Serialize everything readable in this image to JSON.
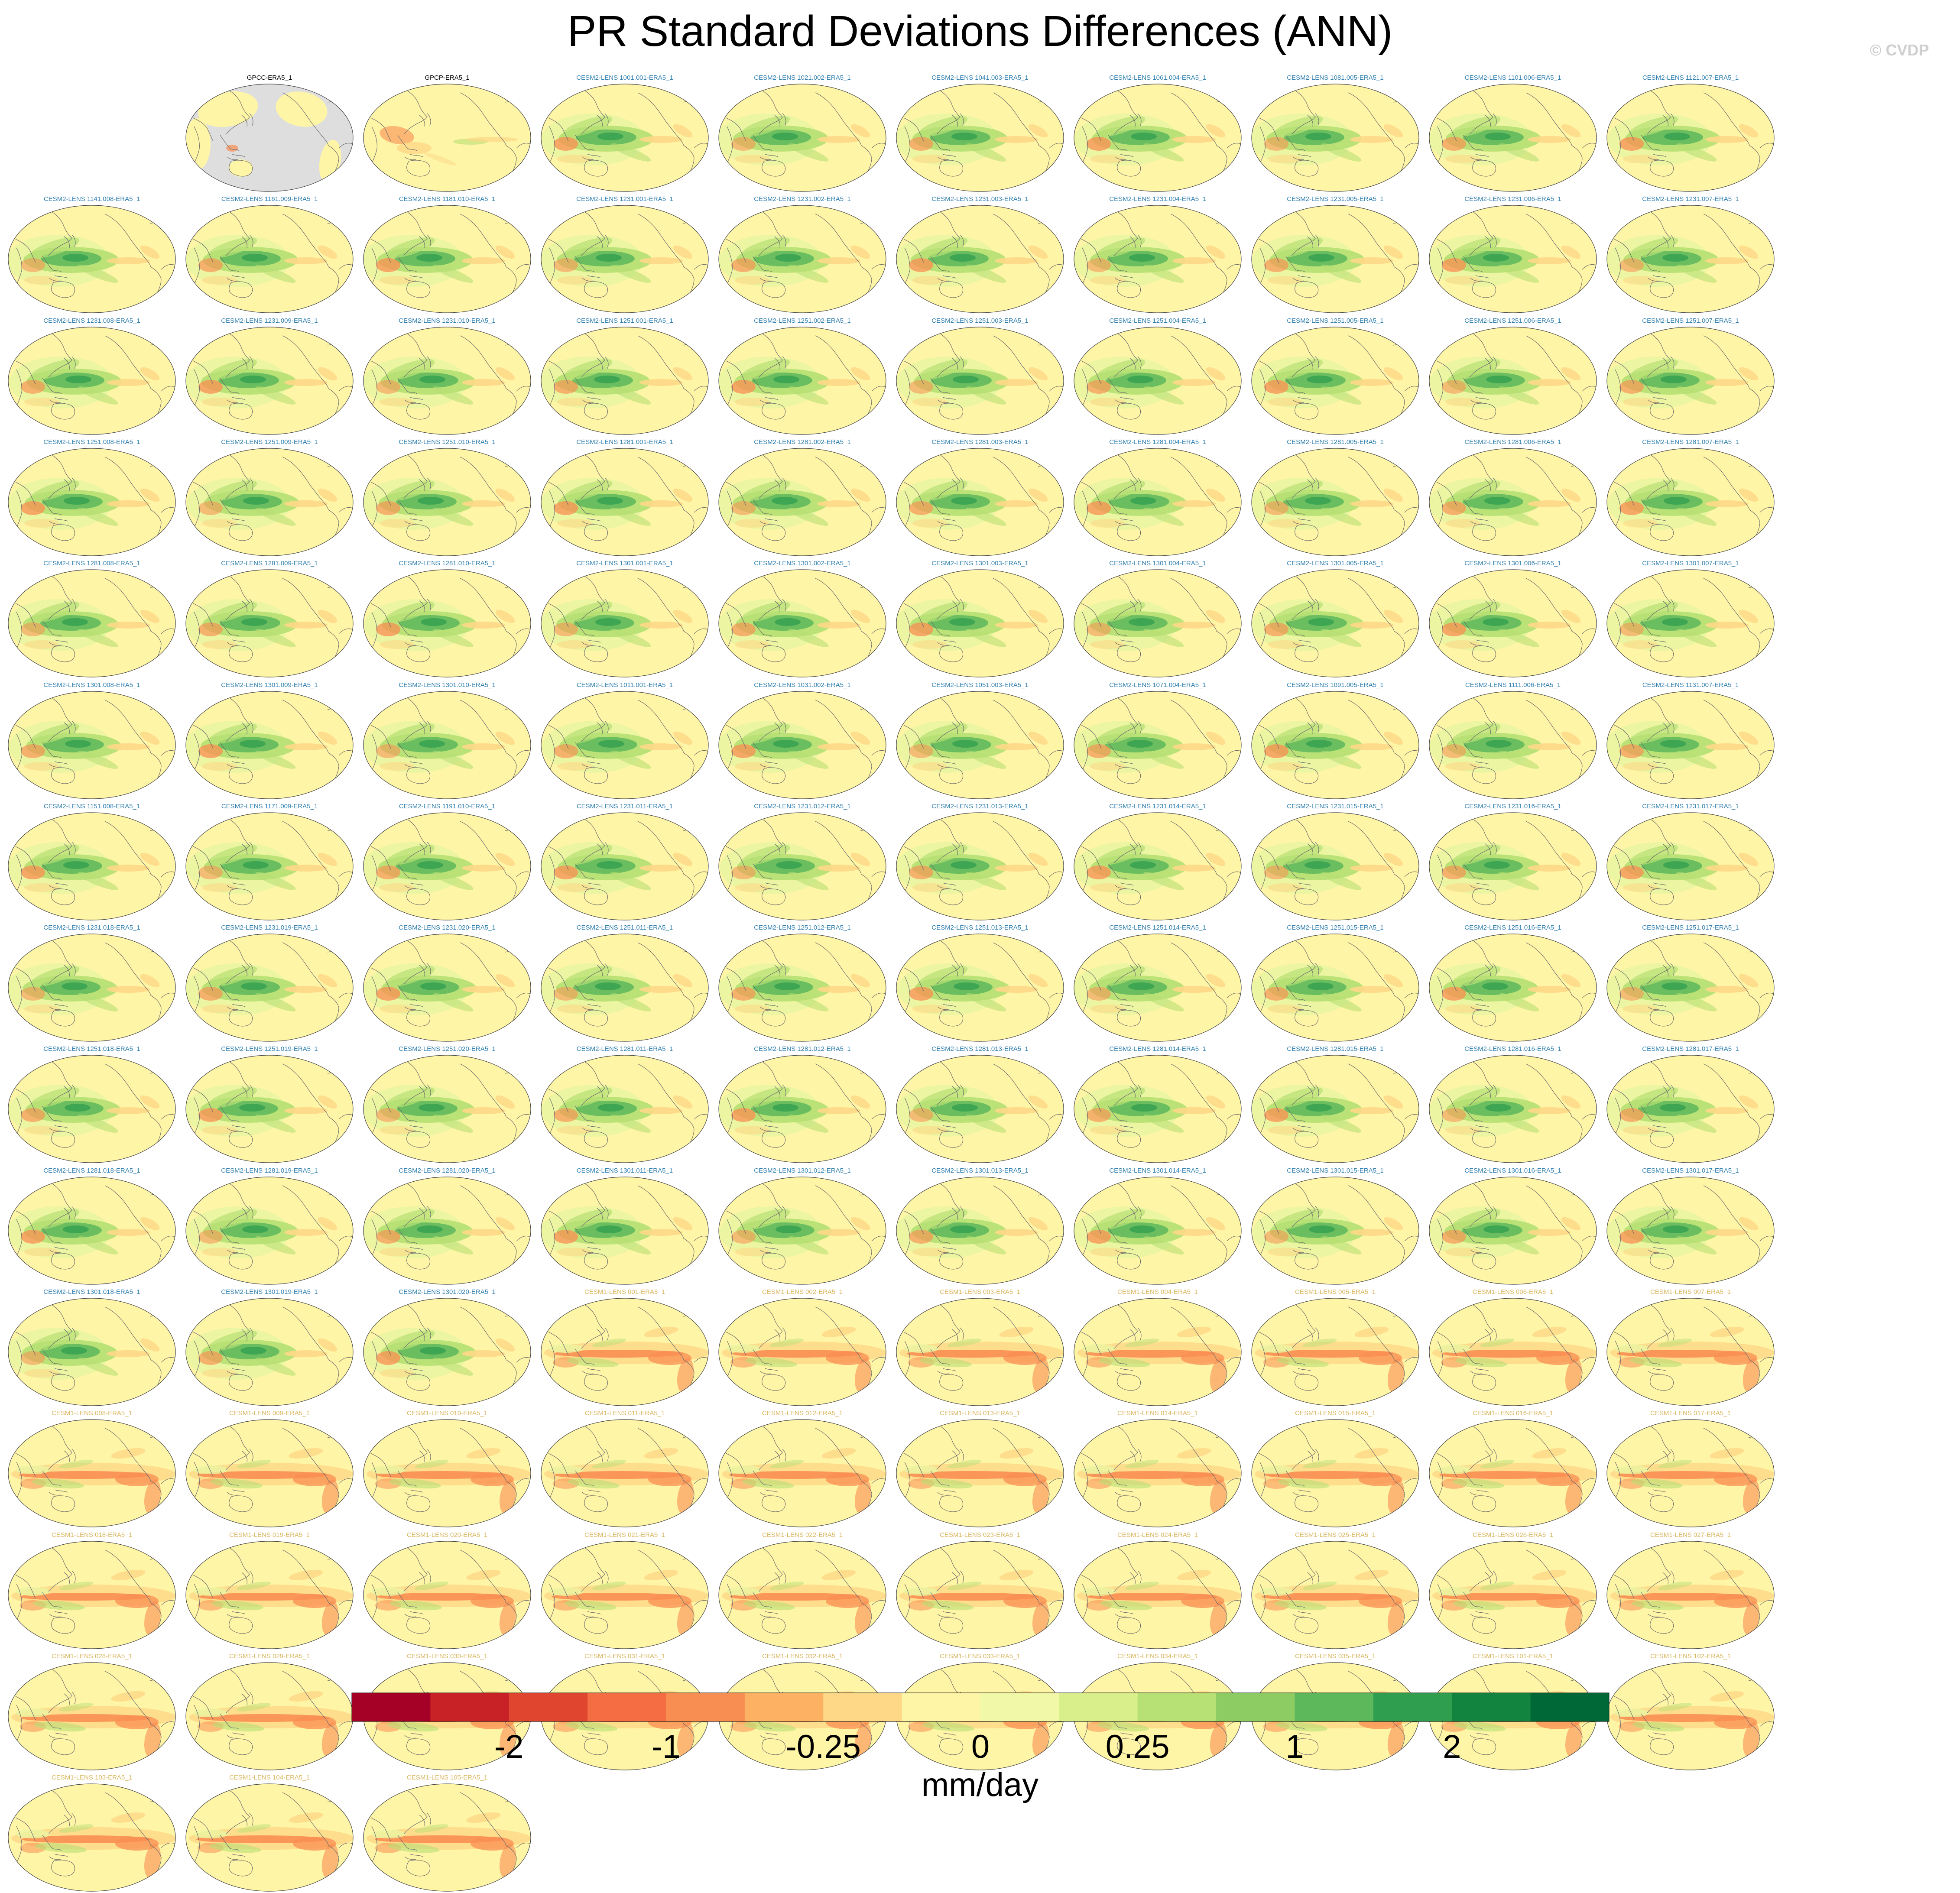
{
  "title": "PR Standard Deviations Differences (ANN)",
  "copyright": "© CVDP",
  "chart_data": {
    "type": "heatmap",
    "variable": "PR",
    "season": "ANN",
    "projection": "Robinson (Pacific-centered global map)",
    "grid_layout": {
      "rows": 13,
      "columns": 10
    },
    "panel_colors": {
      "CESM2-LENS": "#2f7fb0",
      "CESM1-LENS": "#d9b65c",
      "observations": "#000000"
    },
    "panels": [
      {
        "label": "GPCC-ERA5_1",
        "group": "observations",
        "pattern": "obs-masked"
      },
      {
        "label": "GPCP-ERA5_1",
        "group": "observations",
        "pattern": "obs"
      },
      {
        "label": "CESM2-LENS 1001.001-ERA5_1",
        "group": "CESM2-LENS"
      },
      {
        "label": "CESM2-LENS 1021.002-ERA5_1",
        "group": "CESM2-LENS"
      },
      {
        "label": "CESM2-LENS 1041.003-ERA5_1",
        "group": "CESM2-LENS"
      },
      {
        "label": "CESM2-LENS 1061.004-ERA5_1",
        "group": "CESM2-LENS"
      },
      {
        "label": "CESM2-LENS 1081.005-ERA5_1",
        "group": "CESM2-LENS"
      },
      {
        "label": "CESM2-LENS 1101.006-ERA5_1",
        "group": "CESM2-LENS"
      },
      {
        "label": "CESM2-LENS 1121.007-ERA5_1",
        "group": "CESM2-LENS"
      },
      {
        "label": "CESM2-LENS 1141.008-ERA5_1",
        "group": "CESM2-LENS"
      },
      {
        "label": "CESM2-LENS 1161.009-ERA5_1",
        "group": "CESM2-LENS"
      },
      {
        "label": "CESM2-LENS 1181.010-ERA5_1",
        "group": "CESM2-LENS"
      },
      {
        "label": "CESM2-LENS 1231.001-ERA5_1",
        "group": "CESM2-LENS"
      },
      {
        "label": "CESM2-LENS 1231.002-ERA5_1",
        "group": "CESM2-LENS"
      },
      {
        "label": "CESM2-LENS 1231.003-ERA5_1",
        "group": "CESM2-LENS"
      },
      {
        "label": "CESM2-LENS 1231.004-ERA5_1",
        "group": "CESM2-LENS"
      },
      {
        "label": "CESM2-LENS 1231.005-ERA5_1",
        "group": "CESM2-LENS"
      },
      {
        "label": "CESM2-LENS 1231.006-ERA5_1",
        "group": "CESM2-LENS"
      },
      {
        "label": "CESM2-LENS 1231.007-ERA5_1",
        "group": "CESM2-LENS"
      },
      {
        "label": "CESM2-LENS 1231.008-ERA5_1",
        "group": "CESM2-LENS"
      },
      {
        "label": "CESM2-LENS 1231.009-ERA5_1",
        "group": "CESM2-LENS"
      },
      {
        "label": "CESM2-LENS 1231.010-ERA5_1",
        "group": "CESM2-LENS"
      },
      {
        "label": "CESM2-LENS 1251.001-ERA5_1",
        "group": "CESM2-LENS"
      },
      {
        "label": "CESM2-LENS 1251.002-ERA5_1",
        "group": "CESM2-LENS"
      },
      {
        "label": "CESM2-LENS 1251.003-ERA5_1",
        "group": "CESM2-LENS"
      },
      {
        "label": "CESM2-LENS 1251.004-ERA5_1",
        "group": "CESM2-LENS"
      },
      {
        "label": "CESM2-LENS 1251.005-ERA5_1",
        "group": "CESM2-LENS"
      },
      {
        "label": "CESM2-LENS 1251.006-ERA5_1",
        "group": "CESM2-LENS"
      },
      {
        "label": "CESM2-LENS 1251.007-ERA5_1",
        "group": "CESM2-LENS"
      },
      {
        "label": "CESM2-LENS 1251.008-ERA5_1",
        "group": "CESM2-LENS"
      },
      {
        "label": "CESM2-LENS 1251.009-ERA5_1",
        "group": "CESM2-LENS"
      },
      {
        "label": "CESM2-LENS 1251.010-ERA5_1",
        "group": "CESM2-LENS"
      },
      {
        "label": "CESM2-LENS 1281.001-ERA5_1",
        "group": "CESM2-LENS"
      },
      {
        "label": "CESM2-LENS 1281.002-ERA5_1",
        "group": "CESM2-LENS"
      },
      {
        "label": "CESM2-LENS 1281.003-ERA5_1",
        "group": "CESM2-LENS"
      },
      {
        "label": "CESM2-LENS 1281.004-ERA5_1",
        "group": "CESM2-LENS"
      },
      {
        "label": "CESM2-LENS 1281.005-ERA5_1",
        "group": "CESM2-LENS"
      },
      {
        "label": "CESM2-LENS 1281.006-ERA5_1",
        "group": "CESM2-LENS"
      },
      {
        "label": "CESM2-LENS 1281.007-ERA5_1",
        "group": "CESM2-LENS"
      },
      {
        "label": "CESM2-LENS 1281.008-ERA5_1",
        "group": "CESM2-LENS"
      },
      {
        "label": "CESM2-LENS 1281.009-ERA5_1",
        "group": "CESM2-LENS"
      },
      {
        "label": "CESM2-LENS 1281.010-ERA5_1",
        "group": "CESM2-LENS"
      },
      {
        "label": "CESM2-LENS 1301.001-ERA5_1",
        "group": "CESM2-LENS"
      },
      {
        "label": "CESM2-LENS 1301.002-ERA5_1",
        "group": "CESM2-LENS"
      },
      {
        "label": "CESM2-LENS 1301.003-ERA5_1",
        "group": "CESM2-LENS"
      },
      {
        "label": "CESM2-LENS 1301.004-ERA5_1",
        "group": "CESM2-LENS"
      },
      {
        "label": "CESM2-LENS 1301.005-ERA5_1",
        "group": "CESM2-LENS"
      },
      {
        "label": "CESM2-LENS 1301.006-ERA5_1",
        "group": "CESM2-LENS"
      },
      {
        "label": "CESM2-LENS 1301.007-ERA5_1",
        "group": "CESM2-LENS"
      },
      {
        "label": "CESM2-LENS 1301.008-ERA5_1",
        "group": "CESM2-LENS"
      },
      {
        "label": "CESM2-LENS 1301.009-ERA5_1",
        "group": "CESM2-LENS"
      },
      {
        "label": "CESM2-LENS 1301.010-ERA5_1",
        "group": "CESM2-LENS"
      },
      {
        "label": "CESM2-LENS 1011.001-ERA5_1",
        "group": "CESM2-LENS"
      },
      {
        "label": "CESM2-LENS 1031.002-ERA5_1",
        "group": "CESM2-LENS"
      },
      {
        "label": "CESM2-LENS 1051.003-ERA5_1",
        "group": "CESM2-LENS"
      },
      {
        "label": "CESM2-LENS 1071.004-ERA5_1",
        "group": "CESM2-LENS"
      },
      {
        "label": "CESM2-LENS 1091.005-ERA5_1",
        "group": "CESM2-LENS"
      },
      {
        "label": "CESM2-LENS 1111.006-ERA5_1",
        "group": "CESM2-LENS"
      },
      {
        "label": "CESM2-LENS 1131.007-ERA5_1",
        "group": "CESM2-LENS"
      },
      {
        "label": "CESM2-LENS 1151.008-ERA5_1",
        "group": "CESM2-LENS"
      },
      {
        "label": "CESM2-LENS 1171.009-ERA5_1",
        "group": "CESM2-LENS"
      },
      {
        "label": "CESM2-LENS 1191.010-ERA5_1",
        "group": "CESM2-LENS"
      },
      {
        "label": "CESM2-LENS 1231.011-ERA5_1",
        "group": "CESM2-LENS"
      },
      {
        "label": "CESM2-LENS 1231.012-ERA5_1",
        "group": "CESM2-LENS"
      },
      {
        "label": "CESM2-LENS 1231.013-ERA5_1",
        "group": "CESM2-LENS"
      },
      {
        "label": "CESM2-LENS 1231.014-ERA5_1",
        "group": "CESM2-LENS"
      },
      {
        "label": "CESM2-LENS 1231.015-ERA5_1",
        "group": "CESM2-LENS"
      },
      {
        "label": "CESM2-LENS 1231.016-ERA5_1",
        "group": "CESM2-LENS"
      },
      {
        "label": "CESM2-LENS 1231.017-ERA5_1",
        "group": "CESM2-LENS"
      },
      {
        "label": "CESM2-LENS 1231.018-ERA5_1",
        "group": "CESM2-LENS"
      },
      {
        "label": "CESM2-LENS 1231.019-ERA5_1",
        "group": "CESM2-LENS"
      },
      {
        "label": "CESM2-LENS 1231.020-ERA5_1",
        "group": "CESM2-LENS"
      },
      {
        "label": "CESM2-LENS 1251.011-ERA5_1",
        "group": "CESM2-LENS"
      },
      {
        "label": "CESM2-LENS 1251.012-ERA5_1",
        "group": "CESM2-LENS"
      },
      {
        "label": "CESM2-LENS 1251.013-ERA5_1",
        "group": "CESM2-LENS"
      },
      {
        "label": "CESM2-LENS 1251.014-ERA5_1",
        "group": "CESM2-LENS"
      },
      {
        "label": "CESM2-LENS 1251.015-ERA5_1",
        "group": "CESM2-LENS"
      },
      {
        "label": "CESM2-LENS 1251.016-ERA5_1",
        "group": "CESM2-LENS"
      },
      {
        "label": "CESM2-LENS 1251.017-ERA5_1",
        "group": "CESM2-LENS"
      },
      {
        "label": "CESM2-LENS 1251.018-ERA5_1",
        "group": "CESM2-LENS"
      },
      {
        "label": "CESM2-LENS 1251.019-ERA5_1",
        "group": "CESM2-LENS"
      },
      {
        "label": "CESM2-LENS 1251.020-ERA5_1",
        "group": "CESM2-LENS"
      },
      {
        "label": "CESM2-LENS 1281.011-ERA5_1",
        "group": "CESM2-LENS"
      },
      {
        "label": "CESM2-LENS 1281.012-ERA5_1",
        "group": "CESM2-LENS"
      },
      {
        "label": "CESM2-LENS 1281.013-ERA5_1",
        "group": "CESM2-LENS"
      },
      {
        "label": "CESM2-LENS 1281.014-ERA5_1",
        "group": "CESM2-LENS"
      },
      {
        "label": "CESM2-LENS 1281.015-ERA5_1",
        "group": "CESM2-LENS"
      },
      {
        "label": "CESM2-LENS 1281.016-ERA5_1",
        "group": "CESM2-LENS"
      },
      {
        "label": "CESM2-LENS 1281.017-ERA5_1",
        "group": "CESM2-LENS"
      },
      {
        "label": "CESM2-LENS 1281.018-ERA5_1",
        "group": "CESM2-LENS"
      },
      {
        "label": "CESM2-LENS 1281.019-ERA5_1",
        "group": "CESM2-LENS"
      },
      {
        "label": "CESM2-LENS 1281.020-ERA5_1",
        "group": "CESM2-LENS"
      },
      {
        "label": "CESM2-LENS 1301.011-ERA5_1",
        "group": "CESM2-LENS"
      },
      {
        "label": "CESM2-LENS 1301.012-ERA5_1",
        "group": "CESM2-LENS"
      },
      {
        "label": "CESM2-LENS 1301.013-ERA5_1",
        "group": "CESM2-LENS"
      },
      {
        "label": "CESM2-LENS 1301.014-ERA5_1",
        "group": "CESM2-LENS"
      },
      {
        "label": "CESM2-LENS 1301.015-ERA5_1",
        "group": "CESM2-LENS"
      },
      {
        "label": "CESM2-LENS 1301.016-ERA5_1",
        "group": "CESM2-LENS"
      },
      {
        "label": "CESM2-LENS 1301.017-ERA5_1",
        "group": "CESM2-LENS"
      },
      {
        "label": "CESM2-LENS 1301.018-ERA5_1",
        "group": "CESM2-LENS"
      },
      {
        "label": "CESM2-LENS 1301.019-ERA5_1",
        "group": "CESM2-LENS"
      },
      {
        "label": "CESM2-LENS 1301.020-ERA5_1",
        "group": "CESM2-LENS"
      },
      {
        "label": "CESM1-LENS 001-ERA5_1",
        "group": "CESM1-LENS"
      },
      {
        "label": "CESM1-LENS 002-ERA5_1",
        "group": "CESM1-LENS"
      },
      {
        "label": "CESM1-LENS 003-ERA5_1",
        "group": "CESM1-LENS"
      },
      {
        "label": "CESM1-LENS 004-ERA5_1",
        "group": "CESM1-LENS"
      },
      {
        "label": "CESM1-LENS 005-ERA5_1",
        "group": "CESM1-LENS"
      },
      {
        "label": "CESM1-LENS 006-ERA5_1",
        "group": "CESM1-LENS"
      },
      {
        "label": "CESM1-LENS 007-ERA5_1",
        "group": "CESM1-LENS"
      },
      {
        "label": "CESM1-LENS 008-ERA5_1",
        "group": "CESM1-LENS"
      },
      {
        "label": "CESM1-LENS 009-ERA5_1",
        "group": "CESM1-LENS"
      },
      {
        "label": "CESM1-LENS 010-ERA5_1",
        "group": "CESM1-LENS"
      },
      {
        "label": "CESM1-LENS 011-ERA5_1",
        "group": "CESM1-LENS"
      },
      {
        "label": "CESM1-LENS 012-ERA5_1",
        "group": "CESM1-LENS"
      },
      {
        "label": "CESM1-LENS 013-ERA5_1",
        "group": "CESM1-LENS"
      },
      {
        "label": "CESM1-LENS 014-ERA5_1",
        "group": "CESM1-LENS"
      },
      {
        "label": "CESM1-LENS 015-ERA5_1",
        "group": "CESM1-LENS"
      },
      {
        "label": "CESM1-LENS 016-ERA5_1",
        "group": "CESM1-LENS"
      },
      {
        "label": "CESM1-LENS 017-ERA5_1",
        "group": "CESM1-LENS"
      },
      {
        "label": "CESM1-LENS 018-ERA5_1",
        "group": "CESM1-LENS"
      },
      {
        "label": "CESM1-LENS 019-ERA5_1",
        "group": "CESM1-LENS"
      },
      {
        "label": "CESM1-LENS 020-ERA5_1",
        "group": "CESM1-LENS"
      },
      {
        "label": "CESM1-LENS 021-ERA5_1",
        "group": "CESM1-LENS"
      },
      {
        "label": "CESM1-LENS 022-ERA5_1",
        "group": "CESM1-LENS"
      },
      {
        "label": "CESM1-LENS 023-ERA5_1",
        "group": "CESM1-LENS"
      },
      {
        "label": "CESM1-LENS 024-ERA5_1",
        "group": "CESM1-LENS"
      },
      {
        "label": "CESM1-LENS 025-ERA5_1",
        "group": "CESM1-LENS"
      },
      {
        "label": "CESM1-LENS 026-ERA5_1",
        "group": "CESM1-LENS"
      },
      {
        "label": "CESM1-LENS 027-ERA5_1",
        "group": "CESM1-LENS"
      },
      {
        "label": "CESM1-LENS 028-ERA5_1",
        "group": "CESM1-LENS"
      },
      {
        "label": "CESM1-LENS 029-ERA5_1",
        "group": "CESM1-LENS"
      },
      {
        "label": "CESM1-LENS 030-ERA5_1",
        "group": "CESM1-LENS"
      },
      {
        "label": "CESM1-LENS 031-ERA5_1",
        "group": "CESM1-LENS"
      },
      {
        "label": "CESM1-LENS 032-ERA5_1",
        "group": "CESM1-LENS"
      },
      {
        "label": "CESM1-LENS 033-ERA5_1",
        "group": "CESM1-LENS"
      },
      {
        "label": "CESM1-LENS 034-ERA5_1",
        "group": "CESM1-LENS"
      },
      {
        "label": "CESM1-LENS 035-ERA5_1",
        "group": "CESM1-LENS"
      },
      {
        "label": "CESM1-LENS 101-ERA5_1",
        "group": "CESM1-LENS"
      },
      {
        "label": "CESM1-LENS 102-ERA5_1",
        "group": "CESM1-LENS"
      },
      {
        "label": "CESM1-LENS 103-ERA5_1",
        "group": "CESM1-LENS"
      },
      {
        "label": "CESM1-LENS 104-ERA5_1",
        "group": "CESM1-LENS"
      },
      {
        "label": "CESM1-LENS 105-ERA5_1",
        "group": "CESM1-LENS"
      }
    ],
    "colorbar": {
      "unit": "mm/day",
      "colors": [
        "#a50026",
        "#c82227",
        "#e04530",
        "#f46d43",
        "#f98e52",
        "#fdb163",
        "#fed887",
        "#fff5a6",
        "#f1f9a9",
        "#d9ef8b",
        "#b7e075",
        "#8ccc62",
        "#5db75b",
        "#2f9e4f",
        "#12843f",
        "#006837"
      ],
      "tick_labels": [
        "-2",
        "-1",
        "-0.25",
        "0",
        "0.25",
        "1",
        "2"
      ],
      "tick_boundaries": [
        2,
        4,
        6,
        8,
        10,
        12,
        14
      ]
    },
    "field_colors": {
      "neutral": "#fff5a6",
      "weak_positive": "#eaf5a2",
      "positive": "#b7e075",
      "strong_positive": "#5db75b",
      "very_strong_positive": "#2f9e4f",
      "weak_negative": "#fed887",
      "negative": "#f98e52",
      "land_mask": "#dedede",
      "coastline": "#6a6a6a"
    }
  }
}
